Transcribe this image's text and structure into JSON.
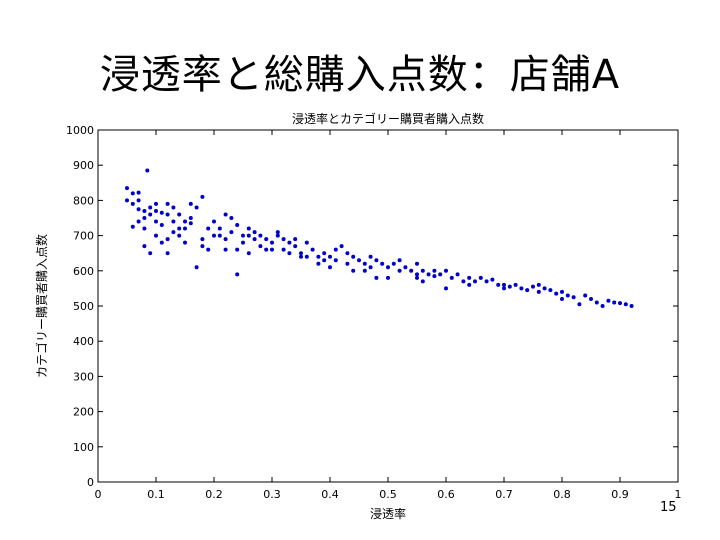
{
  "slide": {
    "title": "浸透率と総購入点数：店舗A",
    "page_number": "15"
  },
  "colors": {
    "marker": "#0000cc",
    "axis": "#000000"
  },
  "chart_data": {
    "type": "scatter",
    "title": "浸透率とカテゴリー購買者購入点数",
    "xlabel": "浸透率",
    "ylabel": "カテゴリー購買者購入点数",
    "xlim": [
      0,
      1
    ],
    "ylim": [
      0,
      1000
    ],
    "xticks": [
      "0",
      "0.1",
      "0.2",
      "0.3",
      "0.4",
      "0.5",
      "0.6",
      "0.7",
      "0.8",
      "0.9",
      "1"
    ],
    "yticks": [
      "0",
      "100",
      "200",
      "300",
      "400",
      "500",
      "600",
      "700",
      "800",
      "900",
      "1000"
    ],
    "grid": false,
    "series": [
      {
        "points": [
          [
            0.05,
            835
          ],
          [
            0.06,
            820
          ],
          [
            0.07,
            822
          ],
          [
            0.06,
            790
          ],
          [
            0.07,
            775
          ],
          [
            0.08,
            770
          ],
          [
            0.09,
            780
          ],
          [
            0.08,
            750
          ],
          [
            0.09,
            760
          ],
          [
            0.1,
            790
          ],
          [
            0.07,
            740
          ],
          [
            0.08,
            720
          ],
          [
            0.06,
            725
          ],
          [
            0.085,
            885
          ],
          [
            0.1,
            770
          ],
          [
            0.11,
            765
          ],
          [
            0.12,
            790
          ],
          [
            0.11,
            730
          ],
          [
            0.1,
            700
          ],
          [
            0.12,
            690
          ],
          [
            0.13,
            710
          ],
          [
            0.14,
            700
          ],
          [
            0.15,
            720
          ],
          [
            0.16,
            790
          ],
          [
            0.13,
            780
          ],
          [
            0.14,
            760
          ],
          [
            0.17,
            780
          ],
          [
            0.18,
            810
          ],
          [
            0.15,
            740
          ],
          [
            0.16,
            735
          ],
          [
            0.12,
            650
          ],
          [
            0.09,
            650
          ],
          [
            0.08,
            670
          ],
          [
            0.17,
            610
          ],
          [
            0.19,
            720
          ],
          [
            0.2,
            740
          ],
          [
            0.21,
            700
          ],
          [
            0.22,
            690
          ],
          [
            0.23,
            750
          ],
          [
            0.24,
            730
          ],
          [
            0.25,
            700
          ],
          [
            0.26,
            720
          ],
          [
            0.22,
            660
          ],
          [
            0.24,
            660
          ],
          [
            0.25,
            680
          ],
          [
            0.27,
            710
          ],
          [
            0.28,
            700
          ],
          [
            0.29,
            690
          ],
          [
            0.3,
            680
          ],
          [
            0.31,
            710
          ],
          [
            0.32,
            690
          ],
          [
            0.33,
            680
          ],
          [
            0.3,
            660
          ],
          [
            0.28,
            670
          ],
          [
            0.27,
            690
          ],
          [
            0.26,
            650
          ],
          [
            0.24,
            590
          ],
          [
            0.34,
            670
          ],
          [
            0.35,
            650
          ],
          [
            0.36,
            680
          ],
          [
            0.37,
            660
          ],
          [
            0.38,
            640
          ],
          [
            0.39,
            650
          ],
          [
            0.4,
            640
          ],
          [
            0.41,
            660
          ],
          [
            0.42,
            670
          ],
          [
            0.43,
            650
          ],
          [
            0.44,
            640
          ],
          [
            0.45,
            630
          ],
          [
            0.46,
            620
          ],
          [
            0.47,
            640
          ],
          [
            0.48,
            630
          ],
          [
            0.4,
            610
          ],
          [
            0.38,
            620
          ],
          [
            0.36,
            640
          ],
          [
            0.44,
            600
          ],
          [
            0.49,
            620
          ],
          [
            0.5,
            610
          ],
          [
            0.51,
            620
          ],
          [
            0.52,
            630
          ],
          [
            0.53,
            610
          ],
          [
            0.54,
            600
          ],
          [
            0.55,
            620
          ],
          [
            0.56,
            600
          ],
          [
            0.57,
            590
          ],
          [
            0.58,
            600
          ],
          [
            0.59,
            590
          ],
          [
            0.6,
            600
          ],
          [
            0.61,
            580
          ],
          [
            0.62,
            590
          ],
          [
            0.5,
            580
          ],
          [
            0.48,
            580
          ],
          [
            0.55,
            590
          ],
          [
            0.63,
            570
          ],
          [
            0.64,
            580
          ],
          [
            0.65,
            570
          ],
          [
            0.66,
            580
          ],
          [
            0.67,
            570
          ],
          [
            0.68,
            575
          ],
          [
            0.69,
            560
          ],
          [
            0.7,
            560
          ],
          [
            0.71,
            555
          ],
          [
            0.72,
            560
          ],
          [
            0.73,
            550
          ],
          [
            0.74,
            545
          ],
          [
            0.75,
            555
          ],
          [
            0.76,
            540
          ],
          [
            0.77,
            550
          ],
          [
            0.78,
            545
          ],
          [
            0.79,
            535
          ],
          [
            0.8,
            540
          ],
          [
            0.81,
            530
          ],
          [
            0.82,
            525
          ],
          [
            0.84,
            530
          ],
          [
            0.85,
            520
          ],
          [
            0.86,
            510
          ],
          [
            0.88,
            515
          ],
          [
            0.89,
            510
          ],
          [
            0.9,
            508
          ],
          [
            0.91,
            505
          ],
          [
            0.92,
            500
          ],
          [
            0.6,
            550
          ],
          [
            0.56,
            570
          ],
          [
            0.46,
            600
          ],
          [
            0.33,
            650
          ],
          [
            0.29,
            660
          ],
          [
            0.2,
            700
          ],
          [
            0.19,
            660
          ],
          [
            0.18,
            690
          ],
          [
            0.15,
            680
          ],
          [
            0.14,
            720
          ],
          [
            0.11,
            680
          ],
          [
            0.55,
            580
          ],
          [
            0.43,
            620
          ],
          [
            0.41,
            630
          ],
          [
            0.35,
            640
          ],
          [
            0.32,
            660
          ],
          [
            0.31,
            700
          ],
          [
            0.23,
            710
          ],
          [
            0.21,
            720
          ],
          [
            0.18,
            670
          ],
          [
            0.13,
            740
          ],
          [
            0.1,
            740
          ],
          [
            0.07,
            800
          ],
          [
            0.52,
            600
          ],
          [
            0.58,
            585
          ],
          [
            0.64,
            560
          ],
          [
            0.7,
            550
          ],
          [
            0.76,
            560
          ],
          [
            0.8,
            520
          ],
          [
            0.83,
            505
          ],
          [
            0.87,
            500
          ],
          [
            0.47,
            610
          ],
          [
            0.39,
            630
          ],
          [
            0.34,
            690
          ],
          [
            0.26,
            700
          ],
          [
            0.22,
            760
          ],
          [
            0.16,
            750
          ],
          [
            0.12,
            760
          ],
          [
            0.05,
            800
          ]
        ]
      }
    ]
  }
}
